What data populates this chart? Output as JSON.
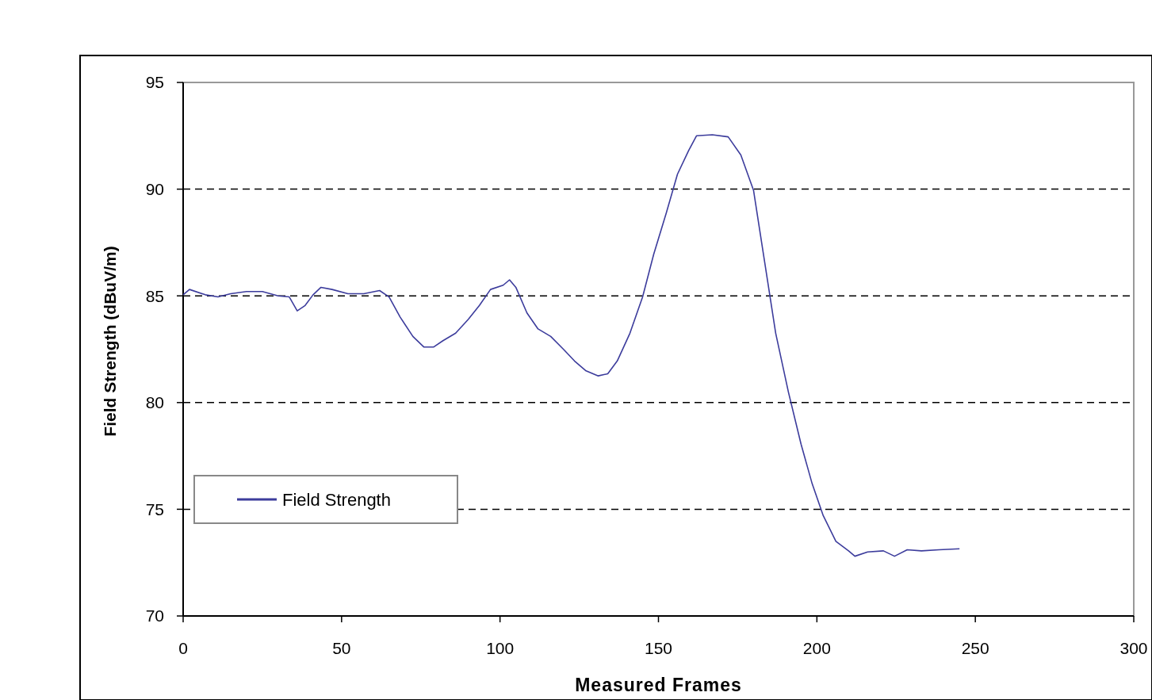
{
  "chart_data": {
    "type": "line",
    "xlabel": "Measured Frames",
    "ylabel": "Field Strength (dBuV/m)",
    "xlim": [
      0,
      300
    ],
    "xticks": [
      0,
      50,
      100,
      150,
      200,
      250,
      300
    ],
    "ylim": [
      70,
      95
    ],
    "yticks": [
      70,
      75,
      80,
      85,
      90,
      95
    ],
    "grid": "y",
    "legend": "bottom left",
    "line_style": "solid",
    "marker": "none",
    "series": [
      {
        "name": "Field Strength",
        "color": "#3c3c9c",
        "x": [
          0,
          2,
          7,
          11,
          15,
          20,
          25,
          30,
          33.5,
          36,
          38.5,
          41,
          43.5,
          47,
          52,
          57,
          62,
          65,
          68.5,
          72.5,
          76,
          79,
          82,
          86,
          90,
          93.5,
          97,
          101,
          103,
          105,
          108.5,
          112,
          116,
          120,
          123.5,
          127,
          131,
          134,
          137,
          141,
          145,
          148.5,
          152.5,
          156,
          159.5,
          162,
          167,
          172,
          176,
          180,
          183.5,
          187,
          191,
          195,
          198.5,
          202,
          206,
          210,
          212,
          216,
          221,
          224.5,
          228.5,
          233,
          238.5,
          245
        ],
        "values": [
          85.05,
          85.3,
          85.05,
          84.95,
          85.1,
          85.2,
          85.2,
          85.0,
          84.95,
          84.3,
          84.55,
          85.05,
          85.4,
          85.3,
          85.1,
          85.1,
          85.25,
          84.95,
          84.0,
          83.1,
          82.6,
          82.6,
          82.9,
          83.25,
          83.9,
          84.55,
          85.3,
          85.5,
          85.75,
          85.4,
          84.2,
          83.45,
          83.1,
          82.5,
          81.95,
          81.5,
          81.25,
          81.35,
          81.95,
          83.25,
          84.95,
          86.95,
          88.9,
          90.7,
          91.8,
          92.5,
          92.55,
          92.45,
          91.6,
          89.95,
          86.6,
          83.25,
          80.5,
          78.05,
          76.2,
          74.7,
          73.5,
          73.05,
          72.8,
          73.0,
          73.05,
          72.8,
          73.1,
          73.05,
          73.1,
          73.15
        ]
      }
    ]
  }
}
